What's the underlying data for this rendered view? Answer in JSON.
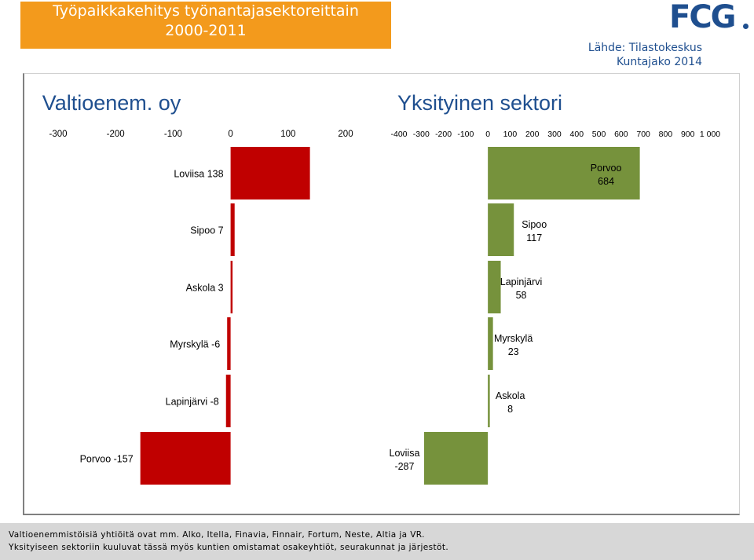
{
  "header": {
    "title_line1": "Työpaikkakehitys työnantajasektoreittain",
    "title_line2": "2000-2011",
    "logo_text": "FCG",
    "source_line1": "Lähde: Tilastokeskus",
    "source_line2": "Kuntajako 2014"
  },
  "footer": {
    "line1": "Valtioenemmistöisiä yhtiöitä ovat mm. Alko, Itella, Finavia, Finnair, Fortum, Neste, Altia ja VR.",
    "line2": "Yksityiseen sektoriin kuuluvat tässä myös kuntien omistamat osakeyhtiöt, seurakunnat ja järjestöt."
  },
  "colors": {
    "state": "#c00000",
    "private": "#76923c",
    "title_bg": "#f39a1c",
    "title_text": "#1f4f8f"
  },
  "chart_data": [
    {
      "type": "bar",
      "orientation": "horizontal",
      "title": "Valtioenem. oy",
      "xlim": [
        -300,
        200
      ],
      "ticks": [
        -300,
        -200,
        -100,
        0,
        100,
        200
      ],
      "tick_labels": [
        "-300",
        "-200",
        "-100",
        "0",
        "100",
        "200"
      ],
      "categories": [
        "Loviisa",
        "Sipoo",
        "Askola",
        "Myrskylä",
        "Lapinjärvi",
        "Porvoo"
      ],
      "values": [
        138,
        7,
        3,
        -6,
        -8,
        -157
      ],
      "labels": [
        "Loviisa 138",
        "Sipoo 7",
        "Askola 3",
        "Myrskylä -6",
        "Lapinjärvi -8",
        "Porvoo -157"
      ],
      "color": "#c00000"
    },
    {
      "type": "bar",
      "orientation": "horizontal",
      "title": "Yksityinen sektori",
      "xlim": [
        -400,
        1000
      ],
      "ticks": [
        -400,
        -300,
        -200,
        -100,
        0,
        100,
        200,
        300,
        400,
        500,
        600,
        700,
        800,
        900,
        1000
      ],
      "tick_labels": [
        "-400",
        "-300",
        "-200",
        "-100",
        "0",
        "100",
        "200",
        "300",
        "400",
        "500",
        "600",
        "700",
        "800",
        "900",
        "1 000"
      ],
      "categories": [
        "Porvoo",
        "Sipoo",
        "Lapinjärvi",
        "Myrskylä",
        "Askola",
        "Loviisa"
      ],
      "values": [
        684,
        117,
        58,
        23,
        8,
        -287
      ],
      "label_names": [
        "Porvoo",
        "Sipoo",
        "Lapinjärvi",
        "Myrskylä",
        "Askola",
        "Loviisa"
      ],
      "label_values": [
        "684",
        "117",
        "58",
        "23",
        "8",
        "-287"
      ],
      "color": "#76923c"
    }
  ]
}
